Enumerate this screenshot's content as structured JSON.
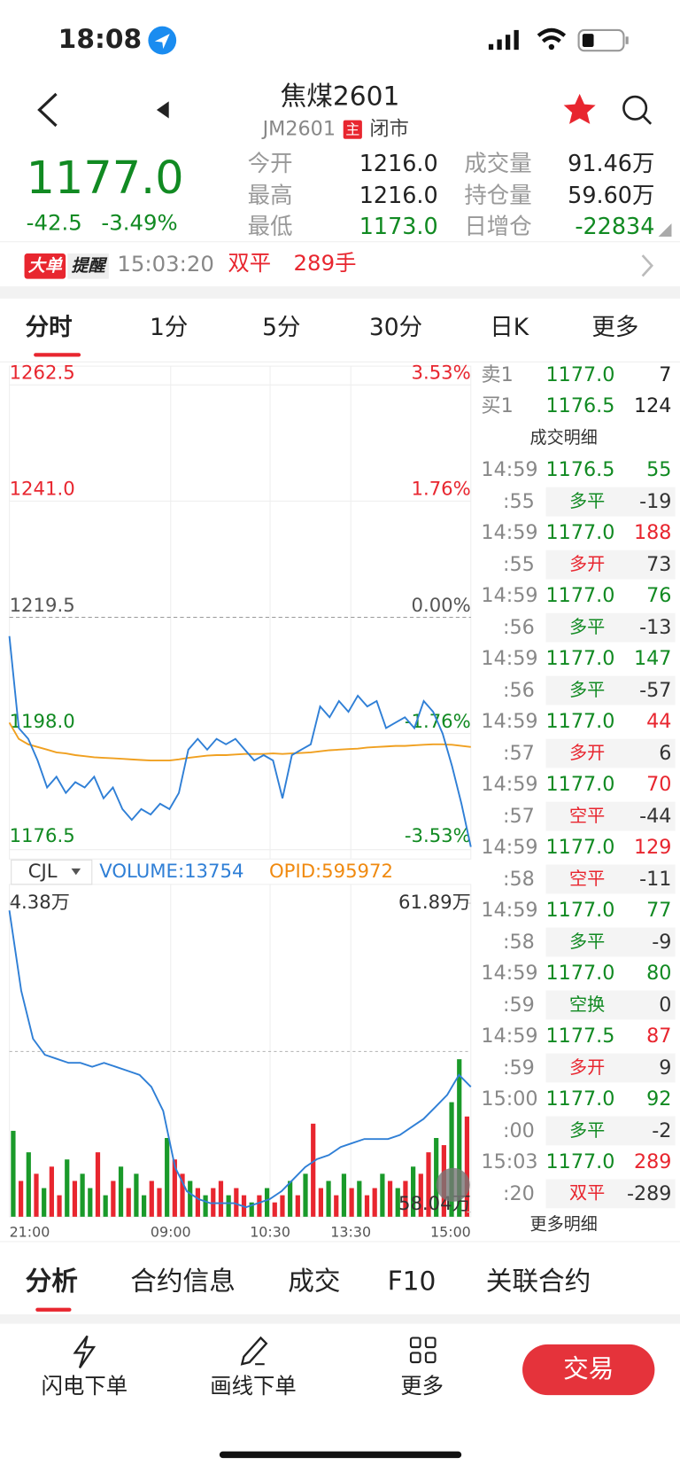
{
  "status_bar": {
    "time": "18:08"
  },
  "header": {
    "title": "焦煤2601",
    "code": "JM2601",
    "badge": "主",
    "status": "闭市"
  },
  "quote": {
    "price": "1177.0",
    "change": "-42.5",
    "change_pct": "-3.49%",
    "color": "#118a22"
  },
  "stats": [
    {
      "label": "今开",
      "value": "1216.0",
      "color": "#222222"
    },
    {
      "label": "成交量",
      "value": "91.46万",
      "color": "#222222"
    },
    {
      "label": "最高",
      "value": "1216.0",
      "color": "#222222"
    },
    {
      "label": "持仓量",
      "value": "59.60万",
      "color": "#222222"
    },
    {
      "label": "最低",
      "value": "1173.0",
      "color": "#118a22"
    },
    {
      "label": "日增仓",
      "value": "-22834",
      "color": "#118a22"
    }
  ],
  "alert": {
    "tag": "大单",
    "tag2": "提醒",
    "time": "15:03:20",
    "kind": "双平",
    "qty": "289手"
  },
  "tabs": [
    "分时",
    "1分",
    "5分",
    "30分",
    "日K",
    "更多"
  ],
  "chart": {
    "type": "line",
    "ylim": [
      1176.5,
      1262.5
    ],
    "yticks": [
      1262.5,
      {
        "value": 1241,
        "label": "1241.0"
      },
      1219.5,
      {
        "value": 1198,
        "label": "1198.0"
      },
      1176.5
    ],
    "pct_labels": [
      "3.53%",
      "1.76%",
      "0.00%",
      "-1.76%",
      "-3.53%"
    ],
    "tick_colors": [
      "#e8262f",
      "#e8262f",
      "#555555",
      "#118a22",
      "#118a22"
    ],
    "categories": [
      "21:00",
      "09:00",
      "10:30",
      "13:30",
      "15:00"
    ],
    "price": {
      "color": "#2f7fd6",
      "values": [
        1216,
        1199,
        1197,
        1193,
        1188,
        1190,
        1187,
        1189,
        1188,
        1190,
        1186,
        1188,
        1184,
        1182,
        1184,
        1183,
        1185,
        1184,
        1187,
        1195,
        1197,
        1195,
        1197,
        1196,
        1197,
        1195,
        1193,
        1194,
        1193,
        1186,
        1194,
        1195,
        1196,
        1203,
        1201,
        1204,
        1202,
        1205,
        1203,
        1204,
        1199,
        1200,
        1201,
        1199,
        1204,
        1202,
        1198,
        1192,
        1185,
        1177
      ]
    },
    "average": {
      "color": "#f0a020",
      "values": [
        1200,
        1197,
        1196,
        1195.5,
        1195,
        1194.5,
        1194.3,
        1194,
        1193.8,
        1193.6,
        1193.5,
        1193.4,
        1193.3,
        1193.2,
        1193.1,
        1193,
        1193,
        1193,
        1193.2,
        1193.5,
        1193.7,
        1193.9,
        1194,
        1194,
        1194.1,
        1194.2,
        1194.2,
        1194.2,
        1194.3,
        1194.2,
        1194.3,
        1194.4,
        1194.5,
        1194.7,
        1194.9,
        1195,
        1195.1,
        1195.2,
        1195.4,
        1195.5,
        1195.6,
        1195.7,
        1195.7,
        1195.8,
        1195.9,
        1196,
        1196,
        1195.9,
        1195.7,
        1195.5
      ]
    },
    "volume": {
      "legend": [
        "CJL",
        "VOLUME:13754",
        "OPID:595972"
      ],
      "legend_colors": [
        "#333333",
        "#2f7fd6",
        "#f08a10"
      ],
      "ylim": [
        0,
        4.38
      ],
      "yticks": [
        {
          "value": 4.38,
          "label": "4.38万"
        }
      ],
      "colors": {
        "up": "#e8262f",
        "down": "#1a9a2a"
      },
      "values": [
        1.2,
        0.5,
        0.9,
        0.6,
        0.4,
        0.7,
        0.3,
        0.8,
        0.5,
        0.6,
        0.4,
        0.9,
        0.3,
        0.5,
        0.7,
        0.4,
        0.6,
        0.3,
        0.5,
        0.4,
        1.1,
        0.8,
        0.6,
        0.5,
        0.4,
        0.3,
        0.4,
        0.5,
        0.3,
        0.4,
        0.3,
        0.2,
        0.3,
        0.4,
        0.2,
        0.3,
        0.5,
        0.3,
        0.6,
        1.3,
        0.4,
        0.5,
        0.3,
        0.6,
        0.4,
        0.5,
        0.3,
        0.4,
        0.6,
        0.5,
        0.4,
        0.5,
        0.7,
        0.6,
        0.9,
        1.1,
        1.0,
        1.6,
        2.2,
        1.4
      ],
      "up": [
        false,
        true,
        false,
        true,
        false,
        true,
        true,
        false,
        true,
        false,
        false,
        true,
        false,
        true,
        false,
        true,
        false,
        false,
        true,
        true,
        false,
        true,
        true,
        false,
        true,
        false,
        true,
        true,
        false,
        true,
        true,
        false,
        true,
        false,
        true,
        true,
        false,
        true,
        false,
        true,
        true,
        false,
        true,
        false,
        true,
        false,
        true,
        true,
        false,
        true,
        false,
        true,
        false,
        true,
        true,
        false,
        true,
        false,
        false,
        true
      ],
      "oi": {
        "color": "#2f7fd6",
        "ylim": [
          58.04,
          61.89
        ],
        "yticks": [
          {
            "value": 61.89,
            "label": "61.89万"
          },
          {
            "value": 58.04,
            "label": "58.04万"
          }
        ],
        "values": [
          61.8,
          60.8,
          60.2,
          60.0,
          59.95,
          59.9,
          59.9,
          59.85,
          59.9,
          59.85,
          59.8,
          59.75,
          59.6,
          59.3,
          58.6,
          58.3,
          58.2,
          58.15,
          58.15,
          58.15,
          58.1,
          58.15,
          58.2,
          58.3,
          58.45,
          58.6,
          58.7,
          58.75,
          58.85,
          58.9,
          58.95,
          58.95,
          58.95,
          59.0,
          59.1,
          59.2,
          59.35,
          59.5,
          59.75,
          59.6
        ]
      }
    }
  },
  "book": [
    {
      "label": "卖1",
      "price": "1177.0",
      "qty": "7"
    },
    {
      "label": "买1",
      "price": "1176.5",
      "qty": "124"
    }
  ],
  "detail_title": "成交明细",
  "trades": [
    {
      "time": "14:59",
      "price": "1176.5",
      "vol": "55",
      "sub": ":55",
      "kind": "多平",
      "oi": "-19",
      "color": "#118a22"
    },
    {
      "time": "14:59",
      "price": "1177.0",
      "vol": "188",
      "sub": ":55",
      "kind": "多开",
      "oi": "73",
      "color": "#e8262f"
    },
    {
      "time": "14:59",
      "price": "1177.0",
      "vol": "76",
      "sub": ":56",
      "kind": "多平",
      "oi": "-13",
      "color": "#118a22"
    },
    {
      "time": "14:59",
      "price": "1177.0",
      "vol": "147",
      "sub": ":56",
      "kind": "多平",
      "oi": "-57",
      "color": "#118a22"
    },
    {
      "time": "14:59",
      "price": "1177.0",
      "vol": "44",
      "sub": ":57",
      "kind": "多开",
      "oi": "6",
      "color": "#e8262f"
    },
    {
      "time": "14:59",
      "price": "1177.0",
      "vol": "70",
      "sub": ":57",
      "kind": "空平",
      "oi": "-44",
      "color": "#e8262f"
    },
    {
      "time": "14:59",
      "price": "1177.0",
      "vol": "129",
      "sub": ":58",
      "kind": "空平",
      "oi": "-11",
      "color": "#e8262f"
    },
    {
      "time": "14:59",
      "price": "1177.0",
      "vol": "77",
      "sub": ":58",
      "kind": "多平",
      "oi": "-9",
      "color": "#118a22"
    },
    {
      "time": "14:59",
      "price": "1177.0",
      "vol": "80",
      "sub": ":59",
      "kind": "空换",
      "oi": "0",
      "color": "#118a22"
    },
    {
      "time": "14:59",
      "price": "1177.5",
      "vol": "87",
      "sub": ":59",
      "kind": "多开",
      "oi": "9",
      "color": "#e8262f"
    },
    {
      "time": "15:00",
      "price": "1177.0",
      "vol": "92",
      "sub": ":00",
      "kind": "多平",
      "oi": "-2",
      "color": "#118a22"
    },
    {
      "time": "15:03",
      "price": "1177.0",
      "vol": "289",
      "sub": ":20",
      "kind": "双平",
      "oi": "-289",
      "color": "#e8262f"
    }
  ],
  "more_detail": "更多明细",
  "bottom_tabs": [
    "分析",
    "合约信息",
    "成交",
    "F10",
    "关联合约"
  ],
  "toolbar": [
    "闪电下单",
    "画线下单",
    "更多"
  ],
  "trade_button": "交易"
}
